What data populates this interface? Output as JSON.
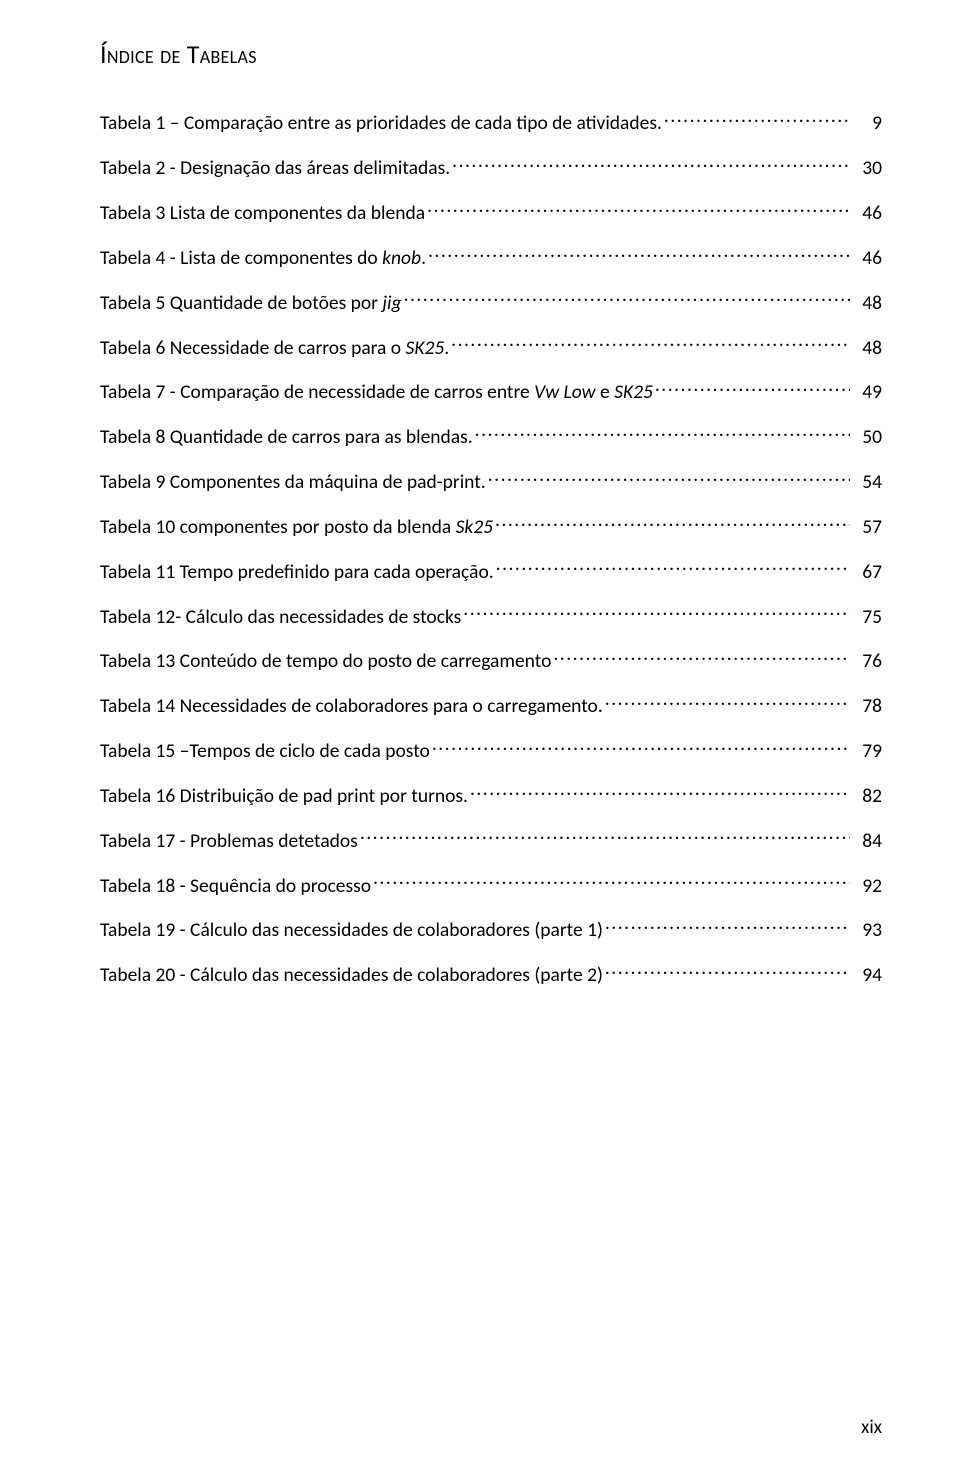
{
  "title": "Índice de Tabelas",
  "page_number": "xix",
  "entries": [
    {
      "label": "Tabela 1 – Comparação entre as prioridades de cada tipo de atividades.",
      "page": "9"
    },
    {
      "label": "Tabela 2 - Designação das áreas delimitadas.",
      "page": "30"
    },
    {
      "label": "Tabela 3 Lista de componentes da blenda",
      "page": "46"
    },
    {
      "label_parts": [
        "Tabela 4 - Lista de componentes do ",
        {
          "t": "knob",
          "i": true
        },
        "."
      ],
      "page": "46"
    },
    {
      "label_parts": [
        "Tabela 5 Quantidade de botões por ",
        {
          "t": "jig",
          "i": true
        }
      ],
      "page": "48"
    },
    {
      "label_parts": [
        "Tabela 6 Necessidade de carros para o ",
        {
          "t": "SK25",
          "i": true
        },
        "."
      ],
      "page": "48"
    },
    {
      "label_parts": [
        "Tabela 7 - Comparação de necessidade de carros entre ",
        {
          "t": "Vw Low",
          "i": true
        },
        " e ",
        {
          "t": "SK25",
          "i": true
        }
      ],
      "page": "49"
    },
    {
      "label": "Tabela 8 Quantidade de carros para as blendas.",
      "page": "50"
    },
    {
      "label": "Tabela 9 Componentes da máquina de pad-print.",
      "page": "54"
    },
    {
      "label_parts": [
        "Tabela 10 componentes por posto da blenda ",
        {
          "t": "Sk25",
          "i": true
        }
      ],
      "page": "57"
    },
    {
      "label": "Tabela 11 Tempo predefinido para cada operação.",
      "page": "67"
    },
    {
      "label": "Tabela 12- Cálculo das necessidades de stocks",
      "page": "75"
    },
    {
      "label": "Tabela 13 Conteúdo de tempo do posto de carregamento",
      "page": "76"
    },
    {
      "label": "Tabela 14 Necessidades de colaboradores para o carregamento.",
      "page": "78"
    },
    {
      "label": "Tabela 15 –Tempos de ciclo de cada posto",
      "page": "79"
    },
    {
      "label": "Tabela 16 Distribuição de pad print por turnos.",
      "page": "82"
    },
    {
      "label": "Tabela 17 - Problemas detetados",
      "page": "84"
    },
    {
      "label": "Tabela 18 - Sequência do processo",
      "page": "92"
    },
    {
      "label": "Tabela 19 - Cálculo das necessidades de colaboradores (parte 1)",
      "page": "93"
    },
    {
      "label": "Tabela 20 - Cálculo das necessidades de colaboradores (parte 2)",
      "page": "94"
    }
  ]
}
